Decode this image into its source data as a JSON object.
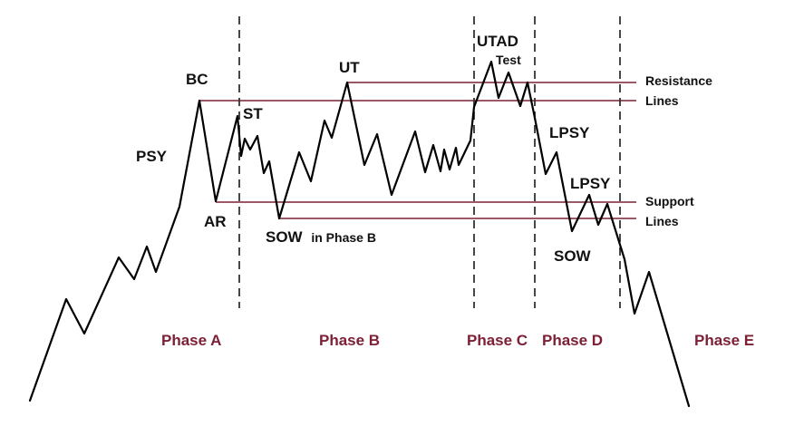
{
  "colors": {
    "price_line": "#000000",
    "level_lines": "#7d2035",
    "phase_dividers": "#333333",
    "phase_text": "#7d2035",
    "background": "#ffffff"
  },
  "labels": {
    "psy": "PSY",
    "bc": "BC",
    "st": "ST",
    "ar": "AR",
    "ut": "UT",
    "sow_phase_b": "SOW",
    "sow_phase_b_suffix": "in Phase B",
    "utad": "UTAD",
    "test": "Test",
    "lpsy_1": "LPSY",
    "lpsy_2": "LPSY",
    "sow": "SOW"
  },
  "side_labels": {
    "resistance": "Resistance",
    "resistance_lines": "Lines",
    "support": "Support",
    "support_lines": "Lines"
  },
  "phases": [
    "Phase A",
    "Phase B",
    "Phase C",
    "Phase D",
    "Phase E"
  ]
}
